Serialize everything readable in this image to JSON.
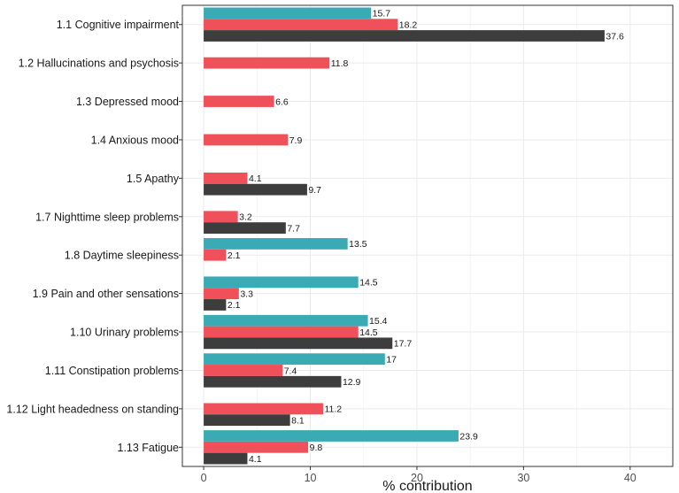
{
  "chart_data": {
    "type": "bar",
    "orientation": "horizontal",
    "xlabel": "% contribution",
    "ylabel": "",
    "xlim": [
      -2,
      44
    ],
    "xticks": [
      0,
      10,
      20,
      30,
      40
    ],
    "grid": true,
    "legend": "none",
    "categories": [
      "1.1 Cognitive impairment",
      "1.2 Hallucinations and psychosis",
      "1.3 Depressed mood",
      "1.4 Anxious mood",
      "1.5 Apathy",
      "1.7 Nighttime sleep problems",
      "1.8 Daytime sleepiness",
      "1.9 Pain and other sensations",
      "1.10 Urinary problems",
      "1.11 Constipation problems",
      "1.12 Light headedness on standing",
      "1.13 Fatigue"
    ],
    "series": [
      {
        "color": "#3aabb4",
        "values": [
          15.7,
          null,
          null,
          null,
          null,
          null,
          13.5,
          14.5,
          15.4,
          17,
          null,
          23.9
        ]
      },
      {
        "color": "#f0505a",
        "values": [
          18.2,
          11.8,
          6.6,
          7.9,
          4.1,
          3.2,
          2.1,
          3.3,
          14.5,
          7.4,
          11.2,
          9.8
        ]
      },
      {
        "color": "#3d3d3d",
        "values": [
          37.6,
          null,
          null,
          null,
          9.7,
          7.7,
          null,
          2.1,
          17.7,
          12.9,
          8.1,
          4.1
        ]
      }
    ]
  }
}
